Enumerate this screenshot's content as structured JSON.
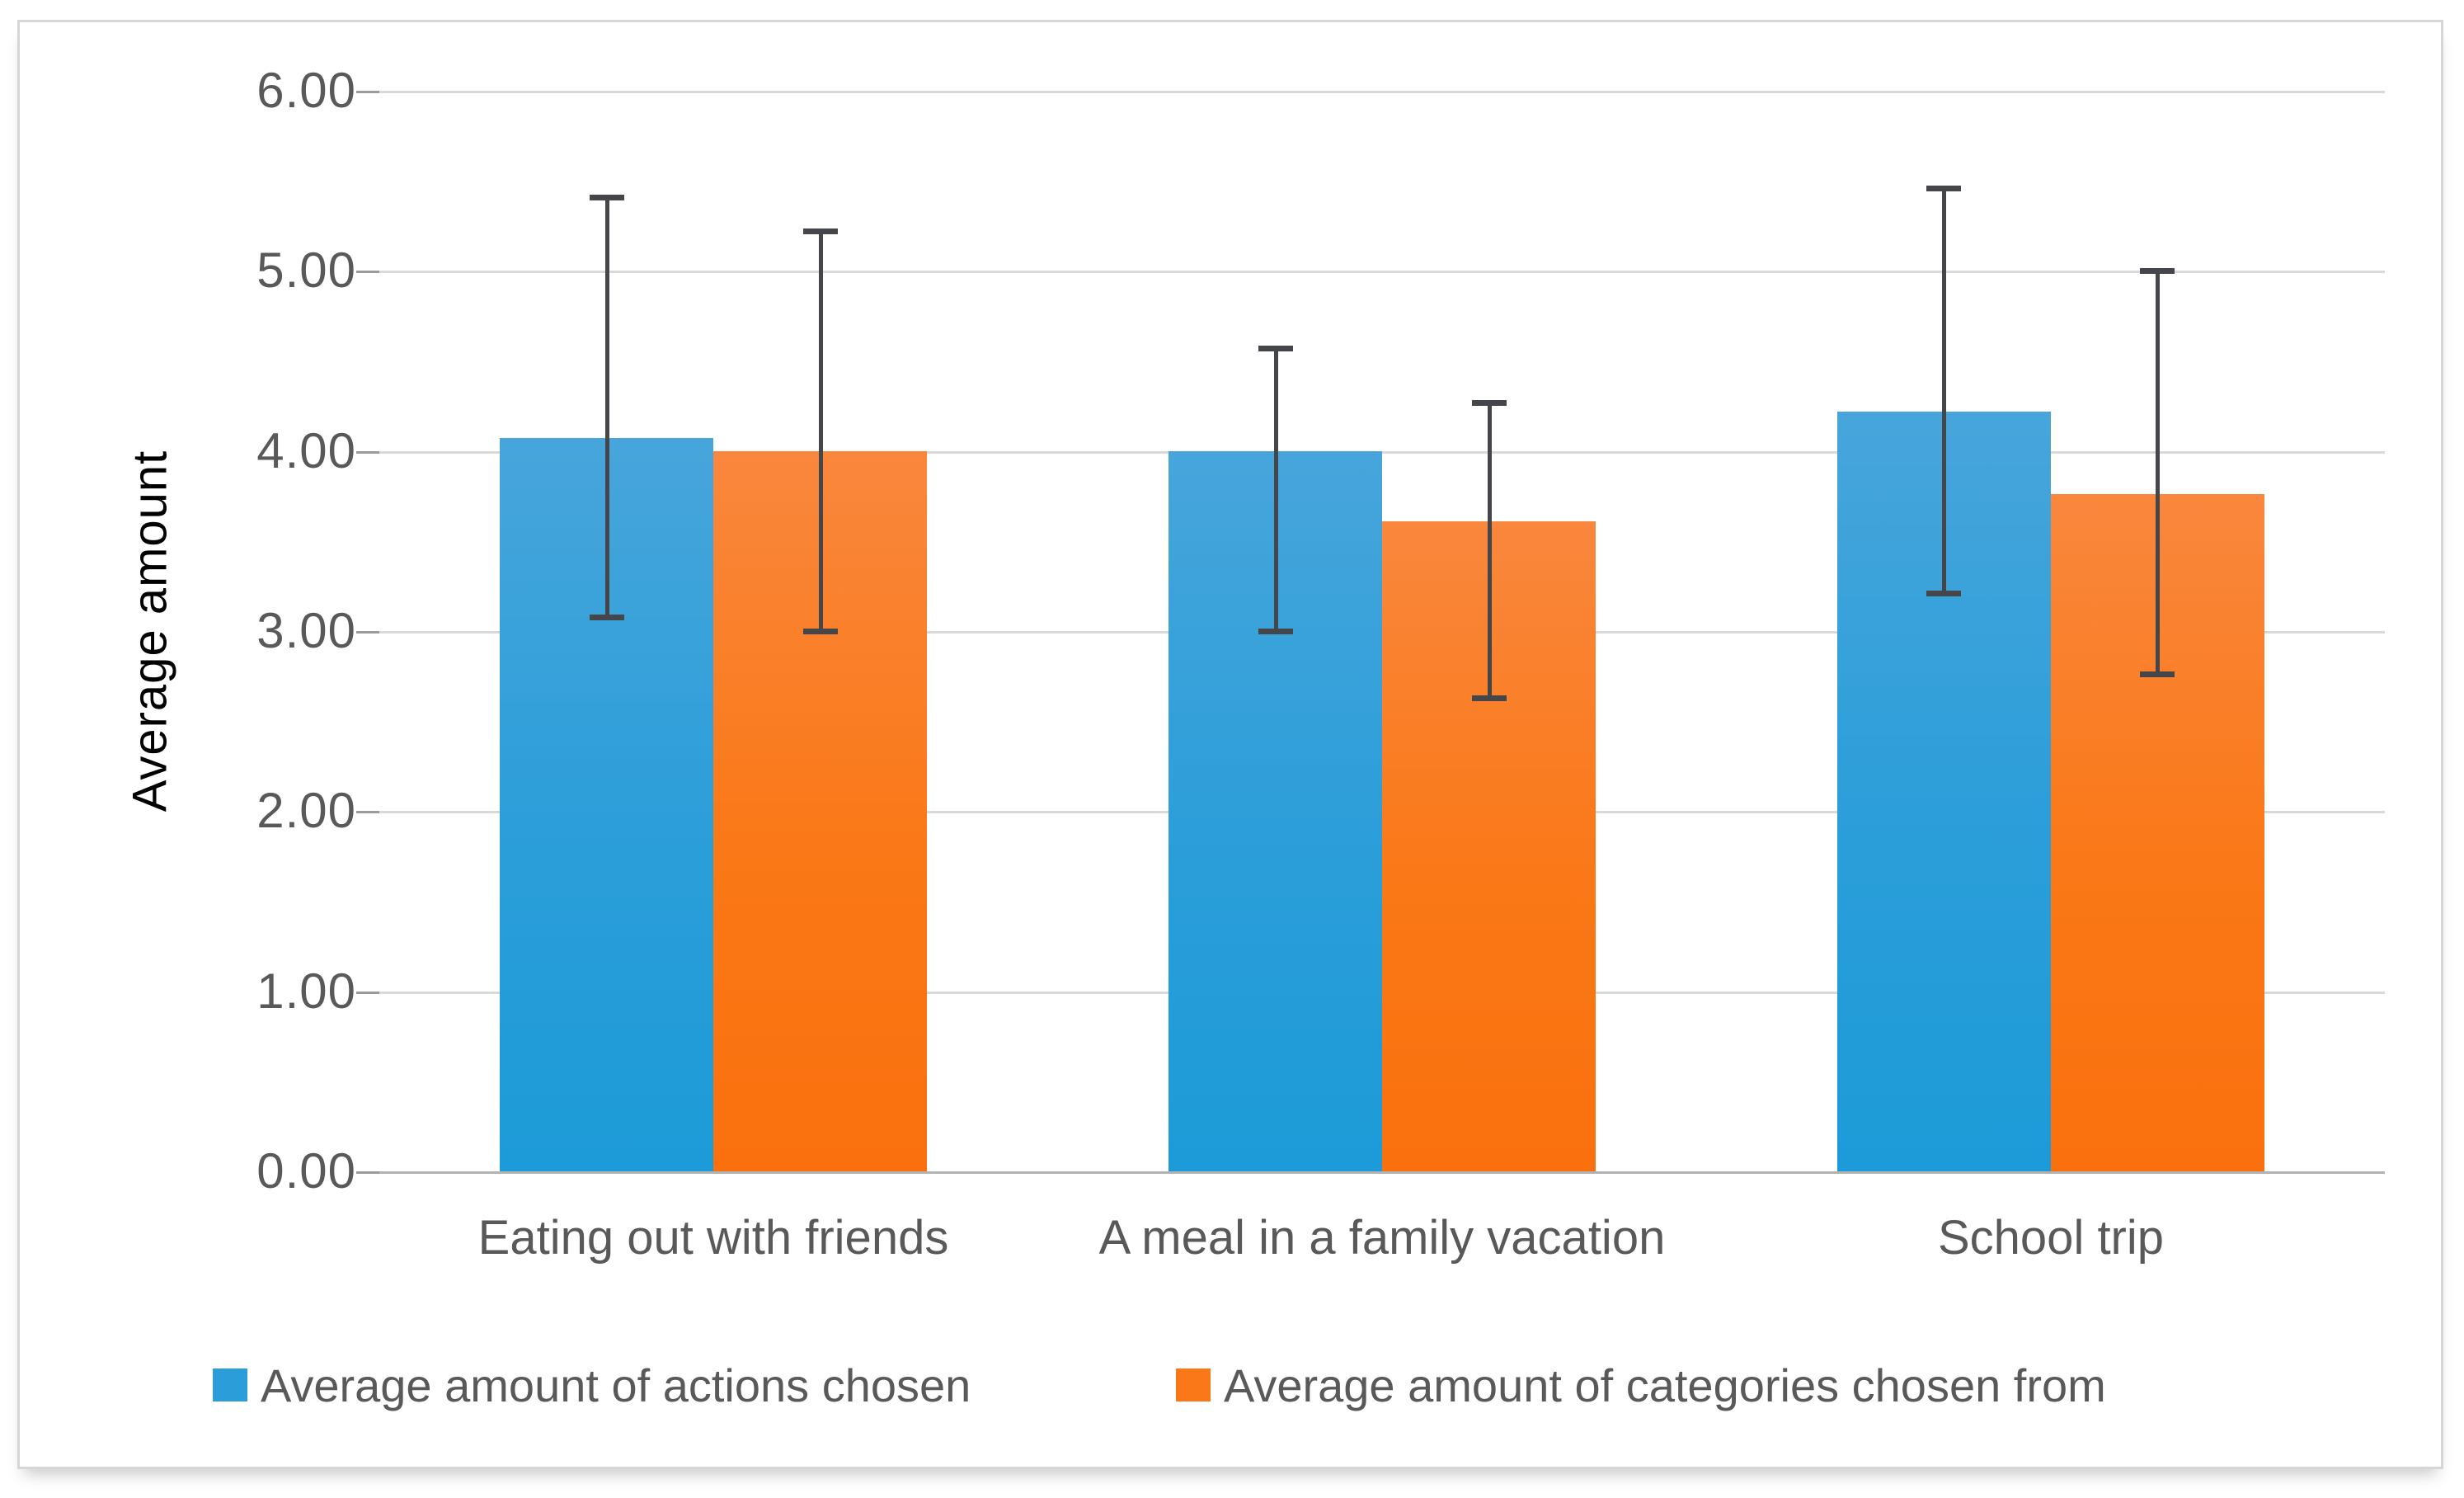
{
  "chart_data": {
    "type": "bar",
    "title": "",
    "categories": [
      "Eating out with friends",
      "A meal in a family vacation",
      "School trip"
    ],
    "series": [
      {
        "name": "Average amount of actions chosen",
        "color": "#2b9ed9",
        "color_top": "#47a5db",
        "color_bottom": "#1c9bd8",
        "values": [
          4.07,
          4.0,
          4.22
        ],
        "error_top": [
          5.41,
          4.57,
          5.46
        ],
        "error_bottom": [
          3.08,
          3.0,
          3.21
        ]
      },
      {
        "name": "Average amount of categories chosen from",
        "color": "#fa7817",
        "color_top": "#f9873d",
        "color_bottom": "#fa700e",
        "values": [
          4.0,
          3.61,
          3.76
        ],
        "error_top": [
          5.22,
          4.27,
          5.0
        ],
        "error_bottom": [
          3.0,
          2.63,
          2.76
        ]
      }
    ],
    "xlabel": "",
    "ylabel": "Average amount",
    "ylim": [
      0,
      6
    ],
    "ytick_step": 1,
    "ytick_labels": [
      "0.00",
      "1.00",
      "2.00",
      "3.00",
      "4.00",
      "5.00",
      "6.00"
    ],
    "grid": true,
    "legend_position": "bottom",
    "error_bar_color": "#44464a",
    "gridline_color": "#d9d9d9",
    "axis_line_color": "#b3b3b3",
    "tick_mark_color": "#9b9b9b",
    "text_color": "#595959",
    "figure_border_color": "#d6d6d6",
    "background_color": "#ffffff"
  }
}
